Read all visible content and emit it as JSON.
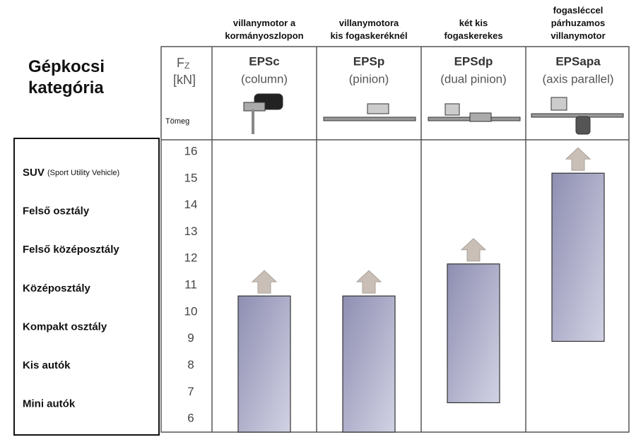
{
  "chart_data": {
    "type": "bar",
    "left_title": "Gépkocsi\nkategória",
    "y_label": "F",
    "y_label_sub": "Z",
    "y_unit": "[kN]",
    "y_note": "Tömeg",
    "columns": [
      {
        "note": "villanymotor a\nkormányoszlopon",
        "name": "EPSc",
        "subtitle": "(column)"
      },
      {
        "note": "villanymotora\nkis fogaskeréknél",
        "name": "EPSp",
        "subtitle": "(pinion)"
      },
      {
        "note": "két kis\nfogaskerekes",
        "name": "EPSdp",
        "subtitle": "(dual pinion)"
      },
      {
        "note": "fogasléccel\npárhuzamos\nvillanymotor",
        "name": "EPSapa",
        "subtitle": "(axis parallel)"
      }
    ],
    "low": [
      5.5,
      5.5,
      6.6,
      8.9
    ],
    "high": [
      10.6,
      10.6,
      11.8,
      15.2
    ],
    "color": "#a9a9c6",
    "rows": [
      {
        "label": "SUV",
        "note": "(Sport Utility Vehicle)"
      },
      {
        "label": "Felső osztály"
      },
      {
        "label": "Felső középosztály"
      },
      {
        "label": "Középosztály"
      },
      {
        "label": "Kompakt osztály"
      },
      {
        "label": "Kis autók"
      },
      {
        "label": "Mini autók"
      }
    ],
    "ylim": [
      5.5,
      16.45
    ],
    "yticks": [
      6,
      7,
      8,
      9,
      10,
      11,
      12,
      13,
      14,
      15,
      16
    ]
  }
}
